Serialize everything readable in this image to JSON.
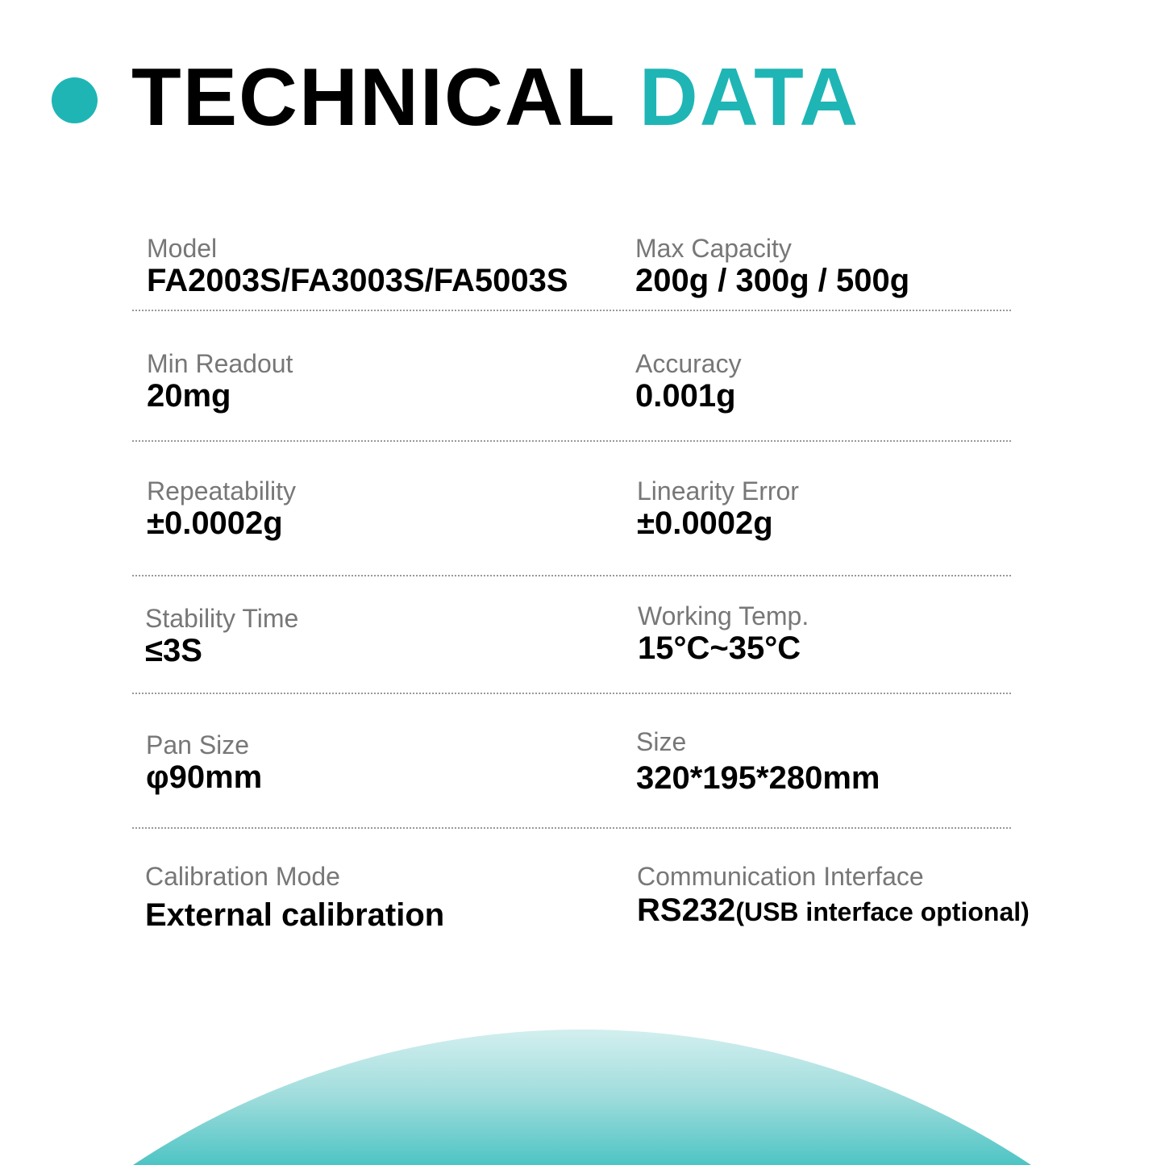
{
  "header": {
    "title_part1": "TECHNICAL",
    "title_part2": "DATA",
    "accent_color": "#1fb5b5",
    "bullet_icon": "circle"
  },
  "specs": [
    {
      "label": "Model",
      "value": "FA2003S/FA3003S/FA5003S"
    },
    {
      "label": "Max Capacity",
      "value": "200g / 300g / 500g"
    },
    {
      "label": "Min Readout",
      "value": "20mg"
    },
    {
      "label": "Accuracy",
      "value": "0.001g"
    },
    {
      "label": "Repeatability",
      "value": "±0.0002g"
    },
    {
      "label": "Linearity Error",
      "value": "±0.0002g"
    },
    {
      "label": "Stability Time",
      "value": "≤3S"
    },
    {
      "label": "Working Temp.",
      "value": "15°C~35°C"
    },
    {
      "label": "Pan Size",
      "value": "φ90mm"
    },
    {
      "label": "Size",
      "value": "320*195*280mm"
    },
    {
      "label": "Calibration Mode",
      "value": "External calibration"
    },
    {
      "label": "Communication Interface",
      "value": "RS232",
      "value_note": "(USB interface optional)"
    }
  ]
}
